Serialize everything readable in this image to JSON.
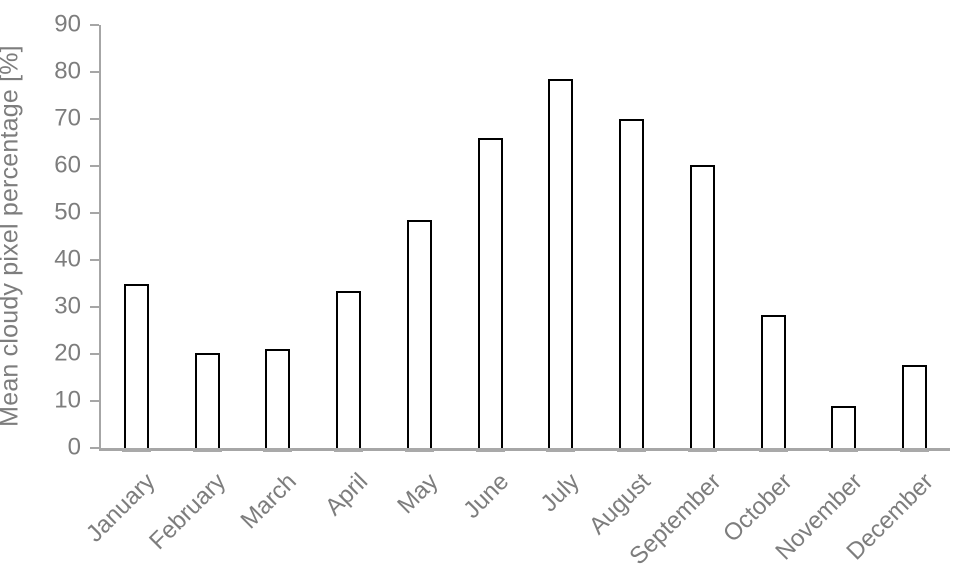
{
  "chart_data": {
    "type": "bar",
    "title": "",
    "xlabel": "",
    "ylabel": "Mean cloudy pixel percentage [%]",
    "categories": [
      "January",
      "February",
      "March",
      "April",
      "May",
      "June",
      "July",
      "August",
      "September",
      "October",
      "November",
      "December"
    ],
    "values": [
      34.8,
      20.3,
      21.0,
      33.5,
      48.5,
      66.0,
      78.5,
      70.0,
      60.2,
      28.2,
      9.0,
      17.7
    ],
    "ylim": [
      0,
      90
    ],
    "ytick_step": 10,
    "ytick_labels": [
      "0",
      "10",
      "20",
      "30",
      "40",
      "50",
      "60",
      "70",
      "80",
      "90"
    ],
    "grid": false,
    "legend": false,
    "bar_fill_color": "#ffffff",
    "bar_border_color": "#000000",
    "axis_line_color": "#a6a6a6",
    "text_color": "#7d7d7d"
  }
}
